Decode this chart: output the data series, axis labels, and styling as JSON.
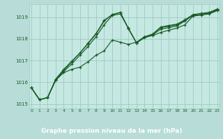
{
  "xlabel_bottom": "Graphe pression niveau de la mer (hPa)",
  "outer_bg": "#b8ddd8",
  "plot_bg_color": "#c5e8e2",
  "grid_color": "#a0c8c0",
  "line_color": "#1a5c28",
  "xlabel_bg": "#2d6e3a",
  "xlabel_fg": "#ffffff",
  "xmin": 0,
  "xmax": 23,
  "ymin": 1014.8,
  "ymax": 1019.6,
  "yticks": [
    1015,
    1016,
    1017,
    1018,
    1019
  ],
  "xticks": [
    0,
    1,
    2,
    3,
    4,
    5,
    6,
    7,
    8,
    9,
    10,
    11,
    12,
    13,
    14,
    15,
    16,
    17,
    18,
    19,
    20,
    21,
    22,
    23
  ],
  "series": [
    [
      1015.75,
      1015.2,
      1015.3,
      1016.1,
      1016.45,
      1016.6,
      1016.7,
      1016.95,
      1017.25,
      1017.45,
      1017.95,
      1017.85,
      1017.75,
      1017.85,
      1018.1,
      1018.15,
      1018.3,
      1018.4,
      1018.5,
      1018.65,
      1019.05,
      1019.1,
      1019.15,
      1019.3
    ],
    [
      1015.75,
      1015.2,
      1015.3,
      1016.1,
      1016.5,
      1016.85,
      1017.25,
      1017.65,
      1018.1,
      1018.65,
      1019.08,
      1019.15,
      1018.5,
      1017.82,
      1018.05,
      1018.18,
      1018.45,
      1018.52,
      1018.6,
      1018.82,
      1019.1,
      1019.12,
      1019.18,
      1019.33
    ],
    [
      1015.75,
      1015.2,
      1015.3,
      1016.1,
      1016.55,
      1016.95,
      1017.35,
      1017.8,
      1018.25,
      1018.85,
      1019.12,
      1019.22,
      1018.48,
      1017.82,
      1018.08,
      1018.22,
      1018.55,
      1018.62,
      1018.68,
      1018.88,
      1019.12,
      1019.18,
      1019.22,
      1019.38
    ],
    [
      1015.75,
      1015.2,
      1015.3,
      1016.15,
      1016.6,
      1016.98,
      1017.35,
      1017.78,
      1018.22,
      1018.82,
      1019.12,
      1019.22,
      1018.48,
      1017.82,
      1018.1,
      1018.22,
      1018.52,
      1018.58,
      1018.65,
      1018.85,
      1019.08,
      1019.12,
      1019.2,
      1019.35
    ]
  ]
}
